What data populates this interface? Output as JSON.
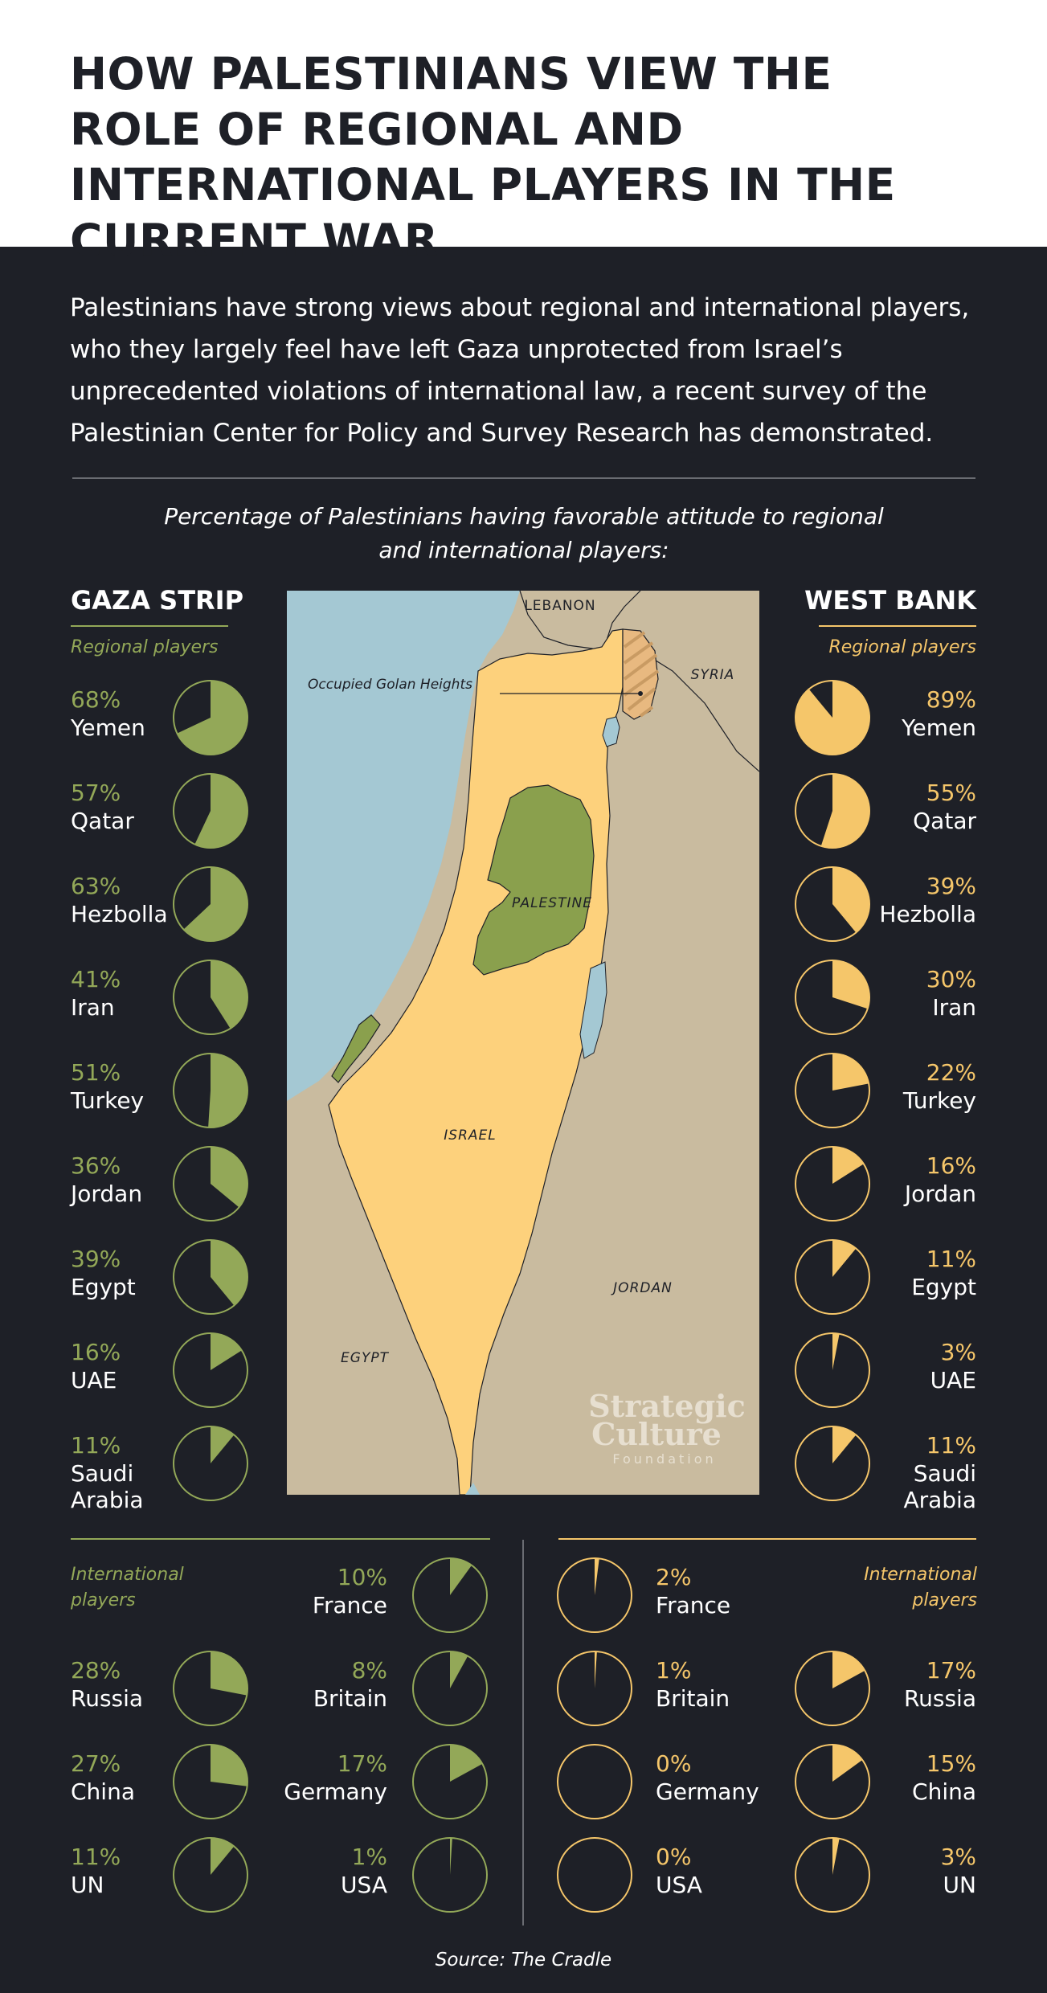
{
  "title": "HOW PALESTINIANS VIEW THE ROLE OF REGIONAL AND INTERNATIONAL PLAYERS IN THE CURRENT WAR",
  "intro": "Palestinians have strong views about regional and international players, who they largely feel have left Gaza unprotected from Israel’s unprecedented violations of international law, a recent survey of the Palestinian Center for Policy and Survey Research has demonstrated.",
  "subtitle_line1": "Percentage of Palestinians having favorable attitude to regional",
  "subtitle_line2": "and international players:",
  "source": "Source: The Cradle",
  "colors": {
    "background": "#1e2027",
    "gaza": "#93a858",
    "west_bank": "#f5c66a",
    "map_sea": "#a4c8d3",
    "map_land": "#c9bb9f",
    "map_israel": "#fdd17c",
    "map_palestine": "#8aa04d"
  },
  "map": {
    "labels": {
      "lebanon": "LEBANON",
      "syria": "SYRIA",
      "golan": "Occupied Golan Heights",
      "palestine": "PALESTINE",
      "israel": "ISRAEL",
      "jordan": "JORDAN",
      "egypt": "EGYPT"
    },
    "watermark_line1": "Strategic",
    "watermark_line2": "Culture",
    "watermark_line3": "Foundation"
  },
  "chart_data": [
    {
      "type": "pie",
      "title": "GAZA STRIP",
      "subtitle": "Regional players",
      "color": "#93a858",
      "series": [
        {
          "label": "Yemen",
          "value": 68,
          "display": "68%"
        },
        {
          "label": "Qatar",
          "value": 57,
          "display": "57%"
        },
        {
          "label": "Hezbolla",
          "value": 63,
          "display": "63%"
        },
        {
          "label": "Iran",
          "value": 41,
          "display": "41%"
        },
        {
          "label": "Turkey",
          "value": 51,
          "display": "51%"
        },
        {
          "label": "Jordan",
          "value": 36,
          "display": "36%"
        },
        {
          "label": "Egypt",
          "value": 39,
          "display": "39%"
        },
        {
          "label": "UAE",
          "value": 16,
          "display": "16%"
        },
        {
          "label": "Saudi Arabia",
          "value": 11,
          "display": "11%"
        }
      ]
    },
    {
      "type": "pie",
      "title": "WEST BANK",
      "subtitle": "Regional players",
      "color": "#f5c66a",
      "series": [
        {
          "label": "Yemen",
          "value": 89,
          "display": "89%"
        },
        {
          "label": "Qatar",
          "value": 55,
          "display": "55%"
        },
        {
          "label": "Hezbolla",
          "value": 39,
          "display": "39%"
        },
        {
          "label": "Iran",
          "value": 30,
          "display": "30%"
        },
        {
          "label": "Turkey",
          "value": 22,
          "display": "22%"
        },
        {
          "label": "Jordan",
          "value": 16,
          "display": "16%"
        },
        {
          "label": "Egypt",
          "value": 11,
          "display": "11%"
        },
        {
          "label": "UAE",
          "value": 3,
          "display": "3%"
        },
        {
          "label": "Saudi Arabia",
          "value": 11,
          "display": "11%"
        }
      ]
    },
    {
      "type": "pie",
      "title": "GAZA STRIP",
      "subtitle": "International players",
      "color": "#93a858",
      "series": [
        {
          "label": "France",
          "value": 10,
          "display": "10%"
        },
        {
          "label": "Russia",
          "value": 28,
          "display": "28%"
        },
        {
          "label": "Britain",
          "value": 8,
          "display": "8%"
        },
        {
          "label": "China",
          "value": 27,
          "display": "27%"
        },
        {
          "label": "Germany",
          "value": 17,
          "display": "17%"
        },
        {
          "label": "UN",
          "value": 11,
          "display": "11%"
        },
        {
          "label": "USA",
          "value": 1,
          "display": "1%"
        }
      ]
    },
    {
      "type": "pie",
      "title": "WEST BANK",
      "subtitle": "International players",
      "color": "#f5c66a",
      "series": [
        {
          "label": "France",
          "value": 2,
          "display": "2%"
        },
        {
          "label": "Britain",
          "value": 1,
          "display": "1%"
        },
        {
          "label": "Russia",
          "value": 17,
          "display": "17%"
        },
        {
          "label": "Germany",
          "value": 0,
          "display": "0%"
        },
        {
          "label": "China",
          "value": 15,
          "display": "15%"
        },
        {
          "label": "USA",
          "value": 0,
          "display": "0%"
        },
        {
          "label": "UN",
          "value": 3,
          "display": "3%"
        }
      ]
    }
  ]
}
